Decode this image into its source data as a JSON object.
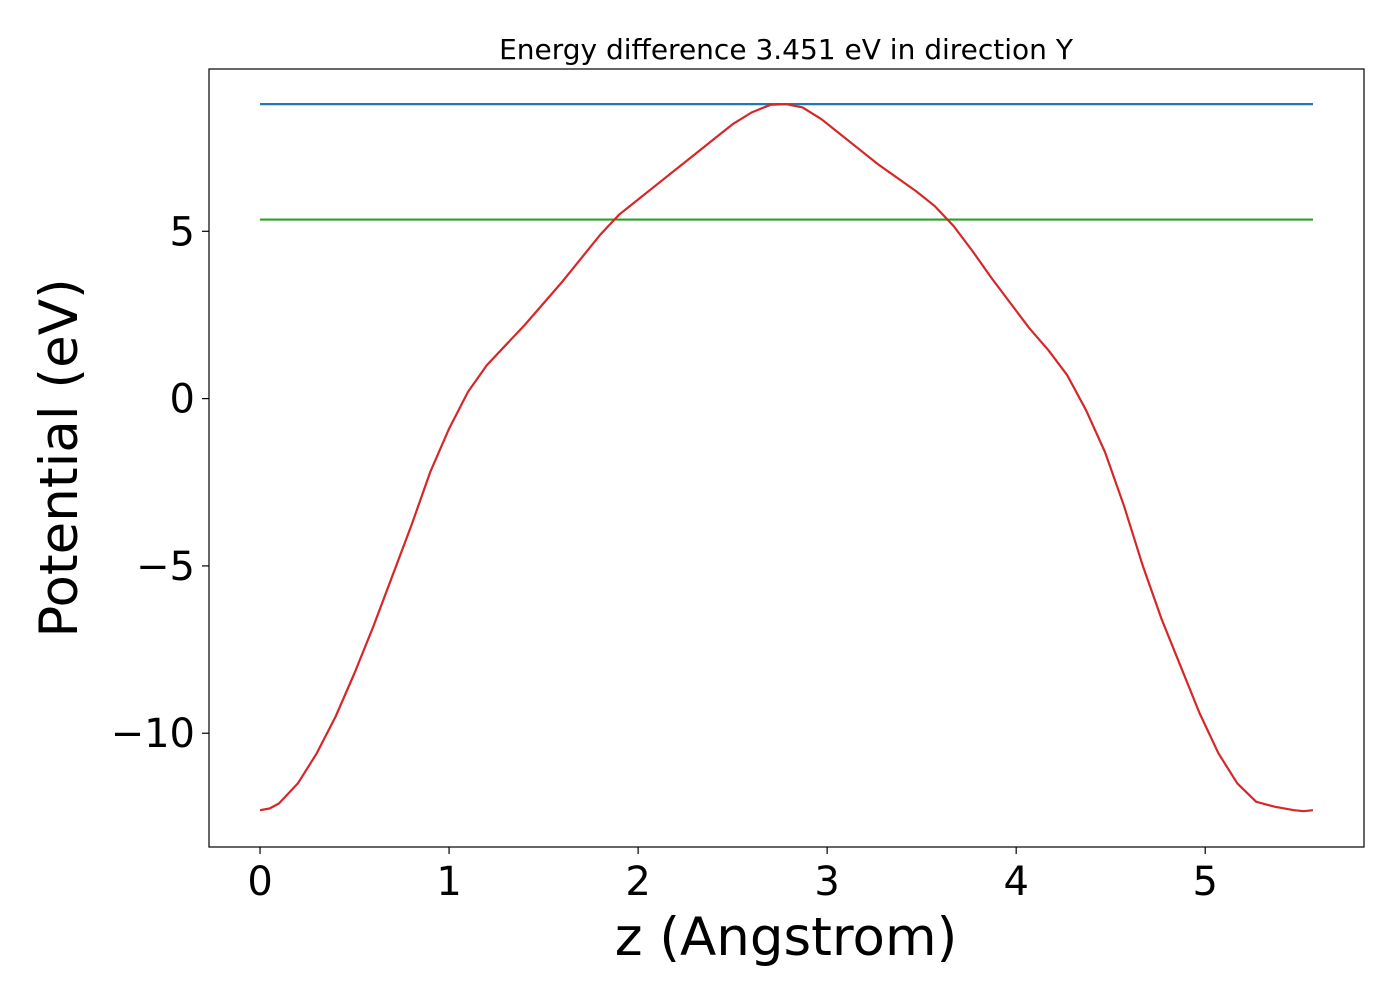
{
  "chart_data": {
    "type": "line",
    "title": "Energy difference 3.451 eV in direction Y",
    "xlabel": "z (Angstrom)",
    "ylabel": "Potential (eV)",
    "xlim": [
      -0.27,
      5.84
    ],
    "ylim": [
      -13.4,
      9.85
    ],
    "xticks": [
      0,
      1,
      2,
      3,
      4,
      5
    ],
    "xtick_labels": [
      "0",
      "1",
      "2",
      "3",
      "4",
      "5"
    ],
    "yticks": [
      -10,
      -5,
      0,
      5
    ],
    "ytick_labels": [
      "−10",
      "−5",
      "0",
      "5"
    ],
    "grid": false,
    "series": [
      {
        "color": "#1f77b4",
        "x": [
          0,
          5.57
        ],
        "y": [
          8.8,
          8.8
        ]
      },
      {
        "color": "#2ca02c",
        "x": [
          0,
          5.57
        ],
        "y": [
          5.35,
          5.35
        ]
      },
      {
        "color": "#d62728",
        "x": [
          0,
          0.05,
          0.1,
          0.2,
          0.3,
          0.4,
          0.5,
          0.6,
          0.7,
          0.8,
          0.9,
          1.0,
          1.1,
          1.2,
          1.3,
          1.4,
          1.5,
          1.6,
          1.7,
          1.8,
          1.9,
          2.0,
          2.1,
          2.2,
          2.3,
          2.4,
          2.5,
          2.6,
          2.7,
          2.785,
          2.87,
          2.97,
          3.07,
          3.17,
          3.27,
          3.37,
          3.47,
          3.57,
          3.67,
          3.77,
          3.87,
          3.97,
          4.07,
          4.17,
          4.27,
          4.37,
          4.47,
          4.57,
          4.67,
          4.77,
          4.87,
          4.97,
          5.07,
          5.17,
          5.27,
          5.37,
          5.47,
          5.52,
          5.57
        ],
        "y": [
          -12.3,
          -12.25,
          -12.1,
          -11.5,
          -10.6,
          -9.5,
          -8.2,
          -6.8,
          -5.3,
          -3.8,
          -2.2,
          -0.9,
          0.2,
          1.0,
          1.6,
          2.2,
          2.85,
          3.5,
          4.2,
          4.9,
          5.5,
          5.95,
          6.4,
          6.85,
          7.3,
          7.75,
          8.2,
          8.55,
          8.78,
          8.8,
          8.7,
          8.35,
          7.9,
          7.45,
          7.0,
          6.6,
          6.2,
          5.75,
          5.15,
          4.4,
          3.6,
          2.85,
          2.1,
          1.45,
          0.7,
          -0.35,
          -1.6,
          -3.2,
          -5.0,
          -6.6,
          -8.0,
          -9.4,
          -10.6,
          -11.5,
          -12.05,
          -12.2,
          -12.3,
          -12.33,
          -12.3
        ]
      }
    ]
  }
}
